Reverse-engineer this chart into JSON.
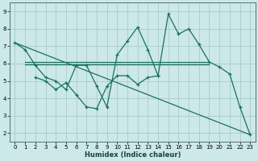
{
  "xlabel": "Humidex (Indice chaleur)",
  "bg_color": "#cce8e8",
  "grid_color": "#aacccc",
  "line_color": "#1a7060",
  "xlim": [
    -0.5,
    23.5
  ],
  "ylim": [
    1.5,
    9.5
  ],
  "yticks": [
    2,
    3,
    4,
    5,
    6,
    7,
    8,
    9
  ],
  "xticks": [
    0,
    1,
    2,
    3,
    4,
    5,
    6,
    7,
    8,
    9,
    10,
    11,
    12,
    13,
    14,
    15,
    16,
    17,
    18,
    19,
    20,
    21,
    22,
    23
  ],
  "series1_x": [
    0,
    1,
    2,
    3,
    4,
    5,
    6,
    7,
    8,
    9,
    10,
    11,
    12,
    13,
    14,
    15,
    16,
    17,
    18,
    19,
    20,
    21,
    22,
    23
  ],
  "series1_y": [
    7.2,
    6.8,
    5.9,
    5.2,
    5.0,
    4.5,
    5.9,
    5.9,
    4.7,
    3.5,
    6.5,
    7.3,
    8.1,
    6.8,
    5.3,
    8.85,
    7.7,
    8.0,
    7.1,
    6.1,
    5.8,
    5.4,
    3.5,
    1.9
  ],
  "series2_x": [
    2,
    3,
    4,
    5,
    6,
    7,
    8,
    9,
    10,
    11,
    12,
    13,
    14
  ],
  "series2_y": [
    5.2,
    5.0,
    4.5,
    4.9,
    4.2,
    3.5,
    3.4,
    4.7,
    5.3,
    5.3,
    4.8,
    5.2,
    5.3
  ],
  "trend1_x": [
    1,
    19
  ],
  "trend1_y": [
    6.1,
    6.1
  ],
  "trend2_x": [
    1,
    19
  ],
  "trend2_y": [
    5.95,
    5.95
  ],
  "trend3_x": [
    0,
    23
  ],
  "trend3_y": [
    7.2,
    1.9
  ]
}
